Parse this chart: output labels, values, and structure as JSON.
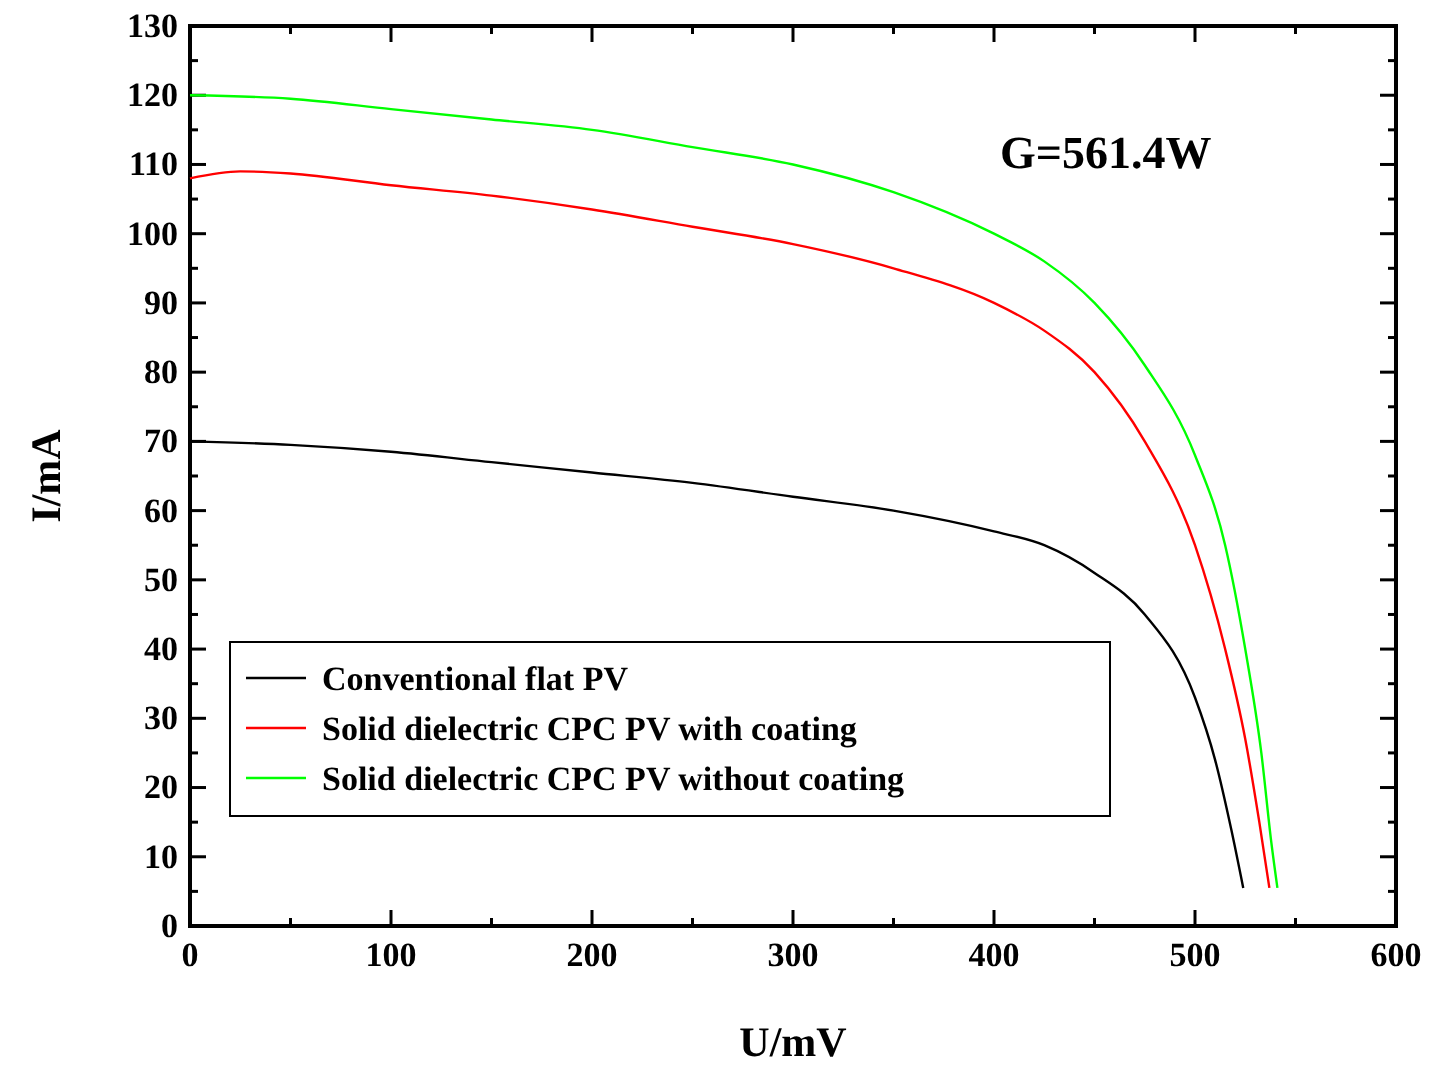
{
  "chart_data": {
    "type": "line",
    "xlabel": "U/mV",
    "ylabel": "I/mA",
    "annotations": [
      "G=561.4W"
    ],
    "xlim": [
      0,
      600
    ],
    "ylim": [
      0,
      130
    ],
    "xticks": [
      0,
      {
        "value": 50,
        "label": null
      },
      100,
      {
        "value": 150,
        "label": null
      },
      200,
      {
        "value": 250,
        "label": null
      },
      300,
      {
        "value": 350,
        "label": null
      },
      400,
      {
        "value": 450,
        "label": null
      },
      500,
      {
        "value": 550,
        "label": null
      },
      600
    ],
    "yticks": [
      0,
      {
        "value": 5,
        "label": null
      },
      10,
      {
        "value": 15,
        "label": null
      },
      20,
      {
        "value": 25,
        "label": null
      },
      30,
      {
        "value": 35,
        "label": null
      },
      40,
      {
        "value": 45,
        "label": null
      },
      50,
      {
        "value": 55,
        "label": null
      },
      60,
      {
        "value": 65,
        "label": null
      },
      70,
      {
        "value": 75,
        "label": null
      },
      80,
      {
        "value": 85,
        "label": null
      },
      90,
      {
        "value": 95,
        "label": null
      },
      100,
      {
        "value": 105,
        "label": null
      },
      110,
      {
        "value": 115,
        "label": null
      },
      120,
      {
        "value": 125,
        "label": null
      },
      130
    ],
    "grid": false,
    "legend": "bottom left",
    "marker": "none",
    "line_style": "solid",
    "series": [
      {
        "name": "Conventional flat PV",
        "color": "#000000",
        "x": [
          0,
          50,
          100,
          150,
          200,
          250,
          300,
          350,
          400,
          425,
          450,
          475,
          500,
          510,
          518,
          524
        ],
        "values": [
          70,
          69.5,
          68.5,
          67,
          65.5,
          64,
          62,
          60,
          57,
          55,
          51,
          45,
          33,
          24,
          14,
          5.5
        ]
      },
      {
        "name": "Solid dielectric CPC PV with coating",
        "color": "#ff0000",
        "x": [
          0,
          25,
          50,
          100,
          150,
          200,
          250,
          300,
          350,
          400,
          425,
          450,
          475,
          500,
          515,
          525,
          532,
          537
        ],
        "values": [
          108,
          109,
          108.7,
          107,
          105.5,
          103.5,
          101,
          98.5,
          95,
          90,
          86,
          80,
          70,
          55,
          40,
          27,
          15,
          5.5
        ]
      },
      {
        "name": "Solid dielectric CPC PV without coating",
        "color": "#00ff00",
        "x": [
          0,
          50,
          100,
          150,
          200,
          250,
          300,
          350,
          400,
          425,
          450,
          475,
          500,
          515,
          525,
          533,
          538,
          541
        ],
        "values": [
          120,
          119.5,
          118,
          116.5,
          115,
          112.5,
          110,
          106,
          100,
          96,
          90,
          81,
          68,
          55,
          40,
          25,
          12,
          5.5
        ]
      }
    ]
  }
}
